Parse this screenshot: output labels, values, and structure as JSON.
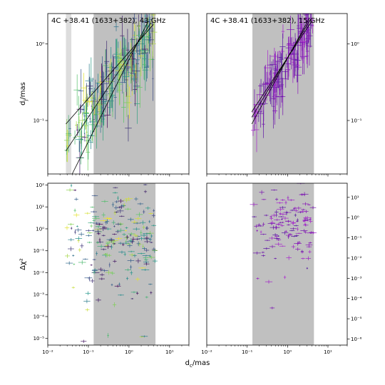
{
  "chart_data": [
    {
      "panel": "top-left",
      "type": "scatter",
      "title": "4C +38.41 (1633+382), 43 GHz",
      "ylabel": "d_j/mas",
      "xscale": "log",
      "yscale": "log",
      "xlim": [
        0.01,
        30
      ],
      "ylim": [
        0.02,
        2.5
      ],
      "yticks": [
        {
          "v": 0.1,
          "label": "10⁻¹"
        },
        {
          "v": 1,
          "label": "10⁰"
        }
      ],
      "shaded_spans": [
        {
          "x": [
            0.028,
            0.038
          ],
          "color": "#dddddd"
        },
        {
          "x": [
            0.135,
            4.5
          ],
          "color": "#c0c0c0"
        }
      ],
      "fit_lines": [
        {
          "x": [
            0.028,
            4.0
          ],
          "y": [
            0.09,
            1.8
          ]
        },
        {
          "x": [
            0.028,
            3.5
          ],
          "y": [
            0.04,
            1.9
          ]
        },
        {
          "x": [
            0.04,
            3.0
          ],
          "y": [
            0.02,
            2.0
          ]
        }
      ],
      "seed": 11,
      "n_points": 230,
      "color_map": "viridis",
      "relation": {
        "kind": "power",
        "ref_x": 1.0,
        "ref_y": 0.55,
        "slope": 0.65,
        "scatter": 0.22,
        "xr": [
          0.028,
          4.2
        ]
      }
    },
    {
      "panel": "top-right",
      "type": "scatter",
      "title": "4C +38.41 (1633+382), 15 GHz",
      "xscale": "log",
      "yscale": "log",
      "xlim": [
        0.01,
        30
      ],
      "ylim": [
        0.02,
        2.5
      ],
      "yticks": [
        {
          "v": 0.1,
          "label": "10⁻¹"
        },
        {
          "v": 1,
          "label": "10⁰"
        }
      ],
      "shaded_spans": [
        {
          "x": [
            0.135,
            4.5
          ],
          "color": "#c0c0c0"
        }
      ],
      "fit_lines": [
        {
          "x": [
            0.13,
            4.0
          ],
          "y": [
            0.13,
            2.0
          ]
        },
        {
          "x": [
            0.13,
            3.7
          ],
          "y": [
            0.11,
            2.1
          ]
        },
        {
          "x": [
            0.13,
            3.5
          ],
          "y": [
            0.09,
            2.2
          ]
        }
      ],
      "seed": 27,
      "n_points": 130,
      "color_map": "plasma-purple",
      "relation": {
        "kind": "power",
        "ref_x": 1.0,
        "ref_y": 0.6,
        "slope": 0.85,
        "scatter": 0.18,
        "xr": [
          0.13,
          4.4
        ]
      }
    },
    {
      "panel": "bottom-left",
      "type": "scatter",
      "xlabel": "d_c/mas",
      "ylabel": "Δχ²",
      "xscale": "log",
      "yscale": "log",
      "xlim": [
        0.01,
        30
      ],
      "ylim": [
        5e-06,
        120
      ],
      "xticks": [
        {
          "v": 0.01,
          "label": "10⁻²"
        },
        {
          "v": 0.1,
          "label": "10⁻¹"
        },
        {
          "v": 1,
          "label": "10⁰"
        },
        {
          "v": 10,
          "label": "10¹"
        }
      ],
      "yticks": [
        {
          "v": 1e-05,
          "label": "10⁻⁵"
        },
        {
          "v": 0.0001,
          "label": "10⁻⁴"
        },
        {
          "v": 0.001,
          "label": "10⁻³"
        },
        {
          "v": 0.01,
          "label": "10⁻²"
        },
        {
          "v": 0.1,
          "label": "10⁻¹"
        },
        {
          "v": 1,
          "label": "10⁰"
        },
        {
          "v": 10,
          "label": "10¹"
        },
        {
          "v": 100,
          "label": "10²"
        }
      ],
      "shaded_spans": [
        {
          "x": [
            0.135,
            4.5
          ],
          "color": "#c0c0c0"
        }
      ],
      "seed": 53,
      "n_points": 230,
      "color_map": "viridis",
      "relation": {
        "kind": "chi",
        "center": 0.3,
        "spread": 1.1,
        "xr": [
          0.028,
          4.4
        ]
      }
    },
    {
      "panel": "bottom-right",
      "type": "scatter",
      "xscale": "log",
      "yscale": "log",
      "xlim": [
        0.01,
        30
      ],
      "ylim": [
        5e-07,
        50
      ],
      "xticks": [
        {
          "v": 0.01,
          "label": "10⁻²"
        },
        {
          "v": 0.1,
          "label": "10⁻¹"
        },
        {
          "v": 1,
          "label": "10⁰"
        },
        {
          "v": 10,
          "label": "10¹"
        }
      ],
      "yticks": [
        {
          "v": 1e-06,
          "label": "10⁻⁶"
        },
        {
          "v": 1e-05,
          "label": "10⁻⁵"
        },
        {
          "v": 0.0001,
          "label": "10⁻⁴"
        },
        {
          "v": 0.001,
          "label": "10⁻³"
        },
        {
          "v": 0.01,
          "label": "10⁻²"
        },
        {
          "v": 0.1,
          "label": "10⁻¹"
        },
        {
          "v": 1,
          "label": "10⁰"
        },
        {
          "v": 10,
          "label": "10¹"
        }
      ],
      "shaded_spans": [
        {
          "x": [
            0.135,
            4.5
          ],
          "color": "#c0c0c0"
        }
      ],
      "seed": 71,
      "n_points": 130,
      "color_map": "plasma-purple",
      "relation": {
        "kind": "chi",
        "center": 0.5,
        "spread": 0.9,
        "xr": [
          0.13,
          4.4
        ]
      }
    }
  ]
}
